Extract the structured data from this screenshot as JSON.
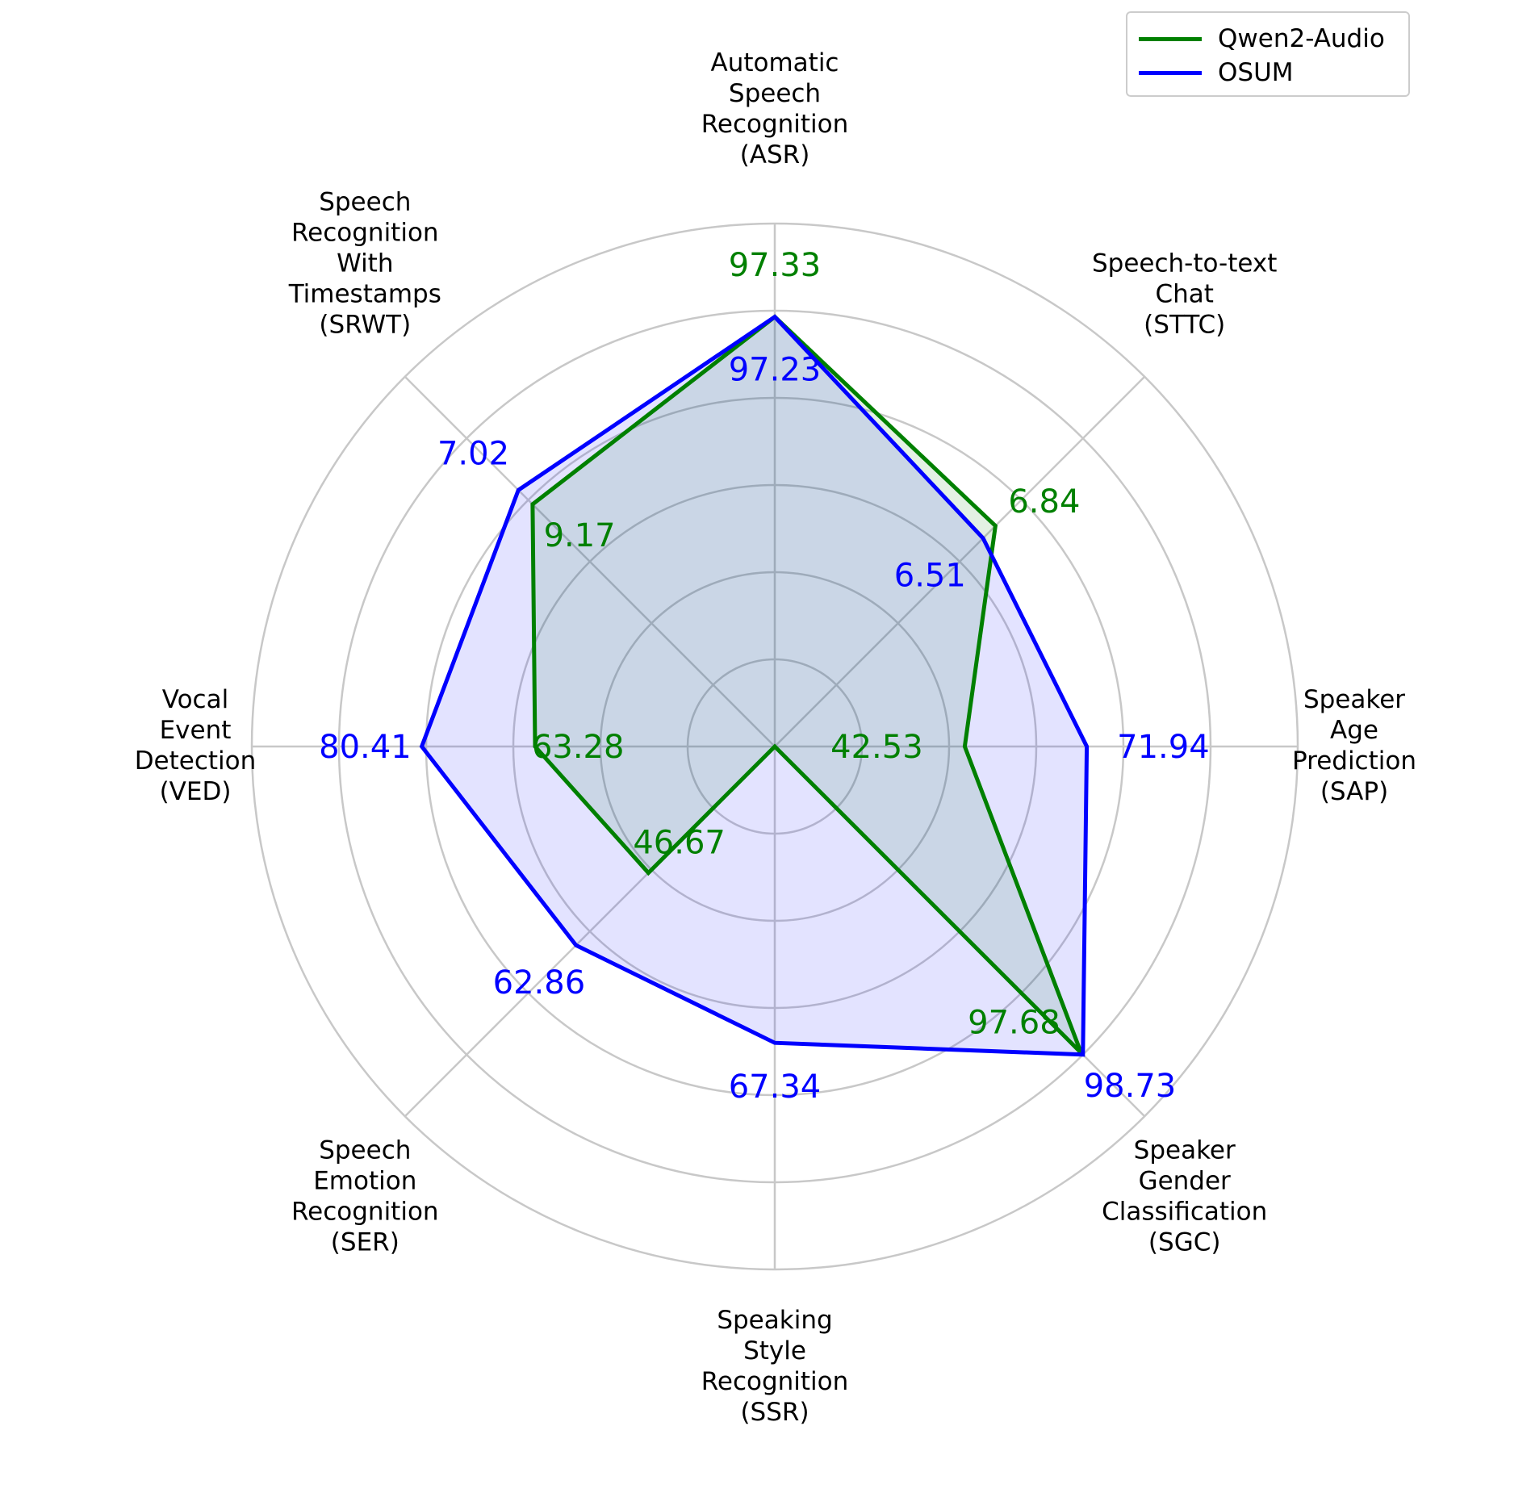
{
  "chart_data": {
    "type": "radar",
    "axes": [
      [
        "Automatic",
        "Speech",
        "Recognition",
        "(ASR)"
      ],
      [
        "Speech-to-text",
        "Chat",
        "(STTC)"
      ],
      [
        "Speaker",
        "Age",
        "Prediction",
        "(SAP)"
      ],
      [
        "Speaker",
        "Gender",
        "Classification",
        "(SGC)"
      ],
      [
        "Speaking",
        "Style",
        "Recognition",
        "(SSR)"
      ],
      [
        "Speech",
        "Emotion",
        "Recognition",
        "(SER)"
      ],
      [
        "Vocal",
        "Event",
        "Detection",
        "(VED)"
      ],
      [
        "Speech",
        "Recognition",
        "With",
        "Timestamps",
        "(SRWT)"
      ]
    ],
    "series": [
      {
        "name": "Qwen2-Audio",
        "color": "#008000",
        "labels": [
          "97.33",
          "6.84",
          "42.53",
          "97.68",
          "",
          "46.67",
          "63.28",
          "9.17"
        ],
        "radius_fraction": [
          0.986,
          0.716,
          0.436,
          0.994,
          0.0,
          0.41,
          0.55,
          0.786
        ]
      },
      {
        "name": "OSUM",
        "color": "#0000ff",
        "fill": "#0000ff",
        "labels": [
          "97.23",
          "6.51",
          "71.94",
          "98.73",
          "67.34",
          "62.86",
          "80.41",
          "7.02"
        ],
        "radius_fraction": [
          0.986,
          0.676,
          0.716,
          1.0,
          0.68,
          0.645,
          0.81,
          0.832
        ]
      }
    ],
    "rings": [
      0.2,
      0.4,
      0.6,
      0.8,
      1.0,
      1.2
    ],
    "grid": true,
    "legend_position": "top-right",
    "legend": [
      "Qwen2-Audio",
      "OSUM"
    ]
  }
}
